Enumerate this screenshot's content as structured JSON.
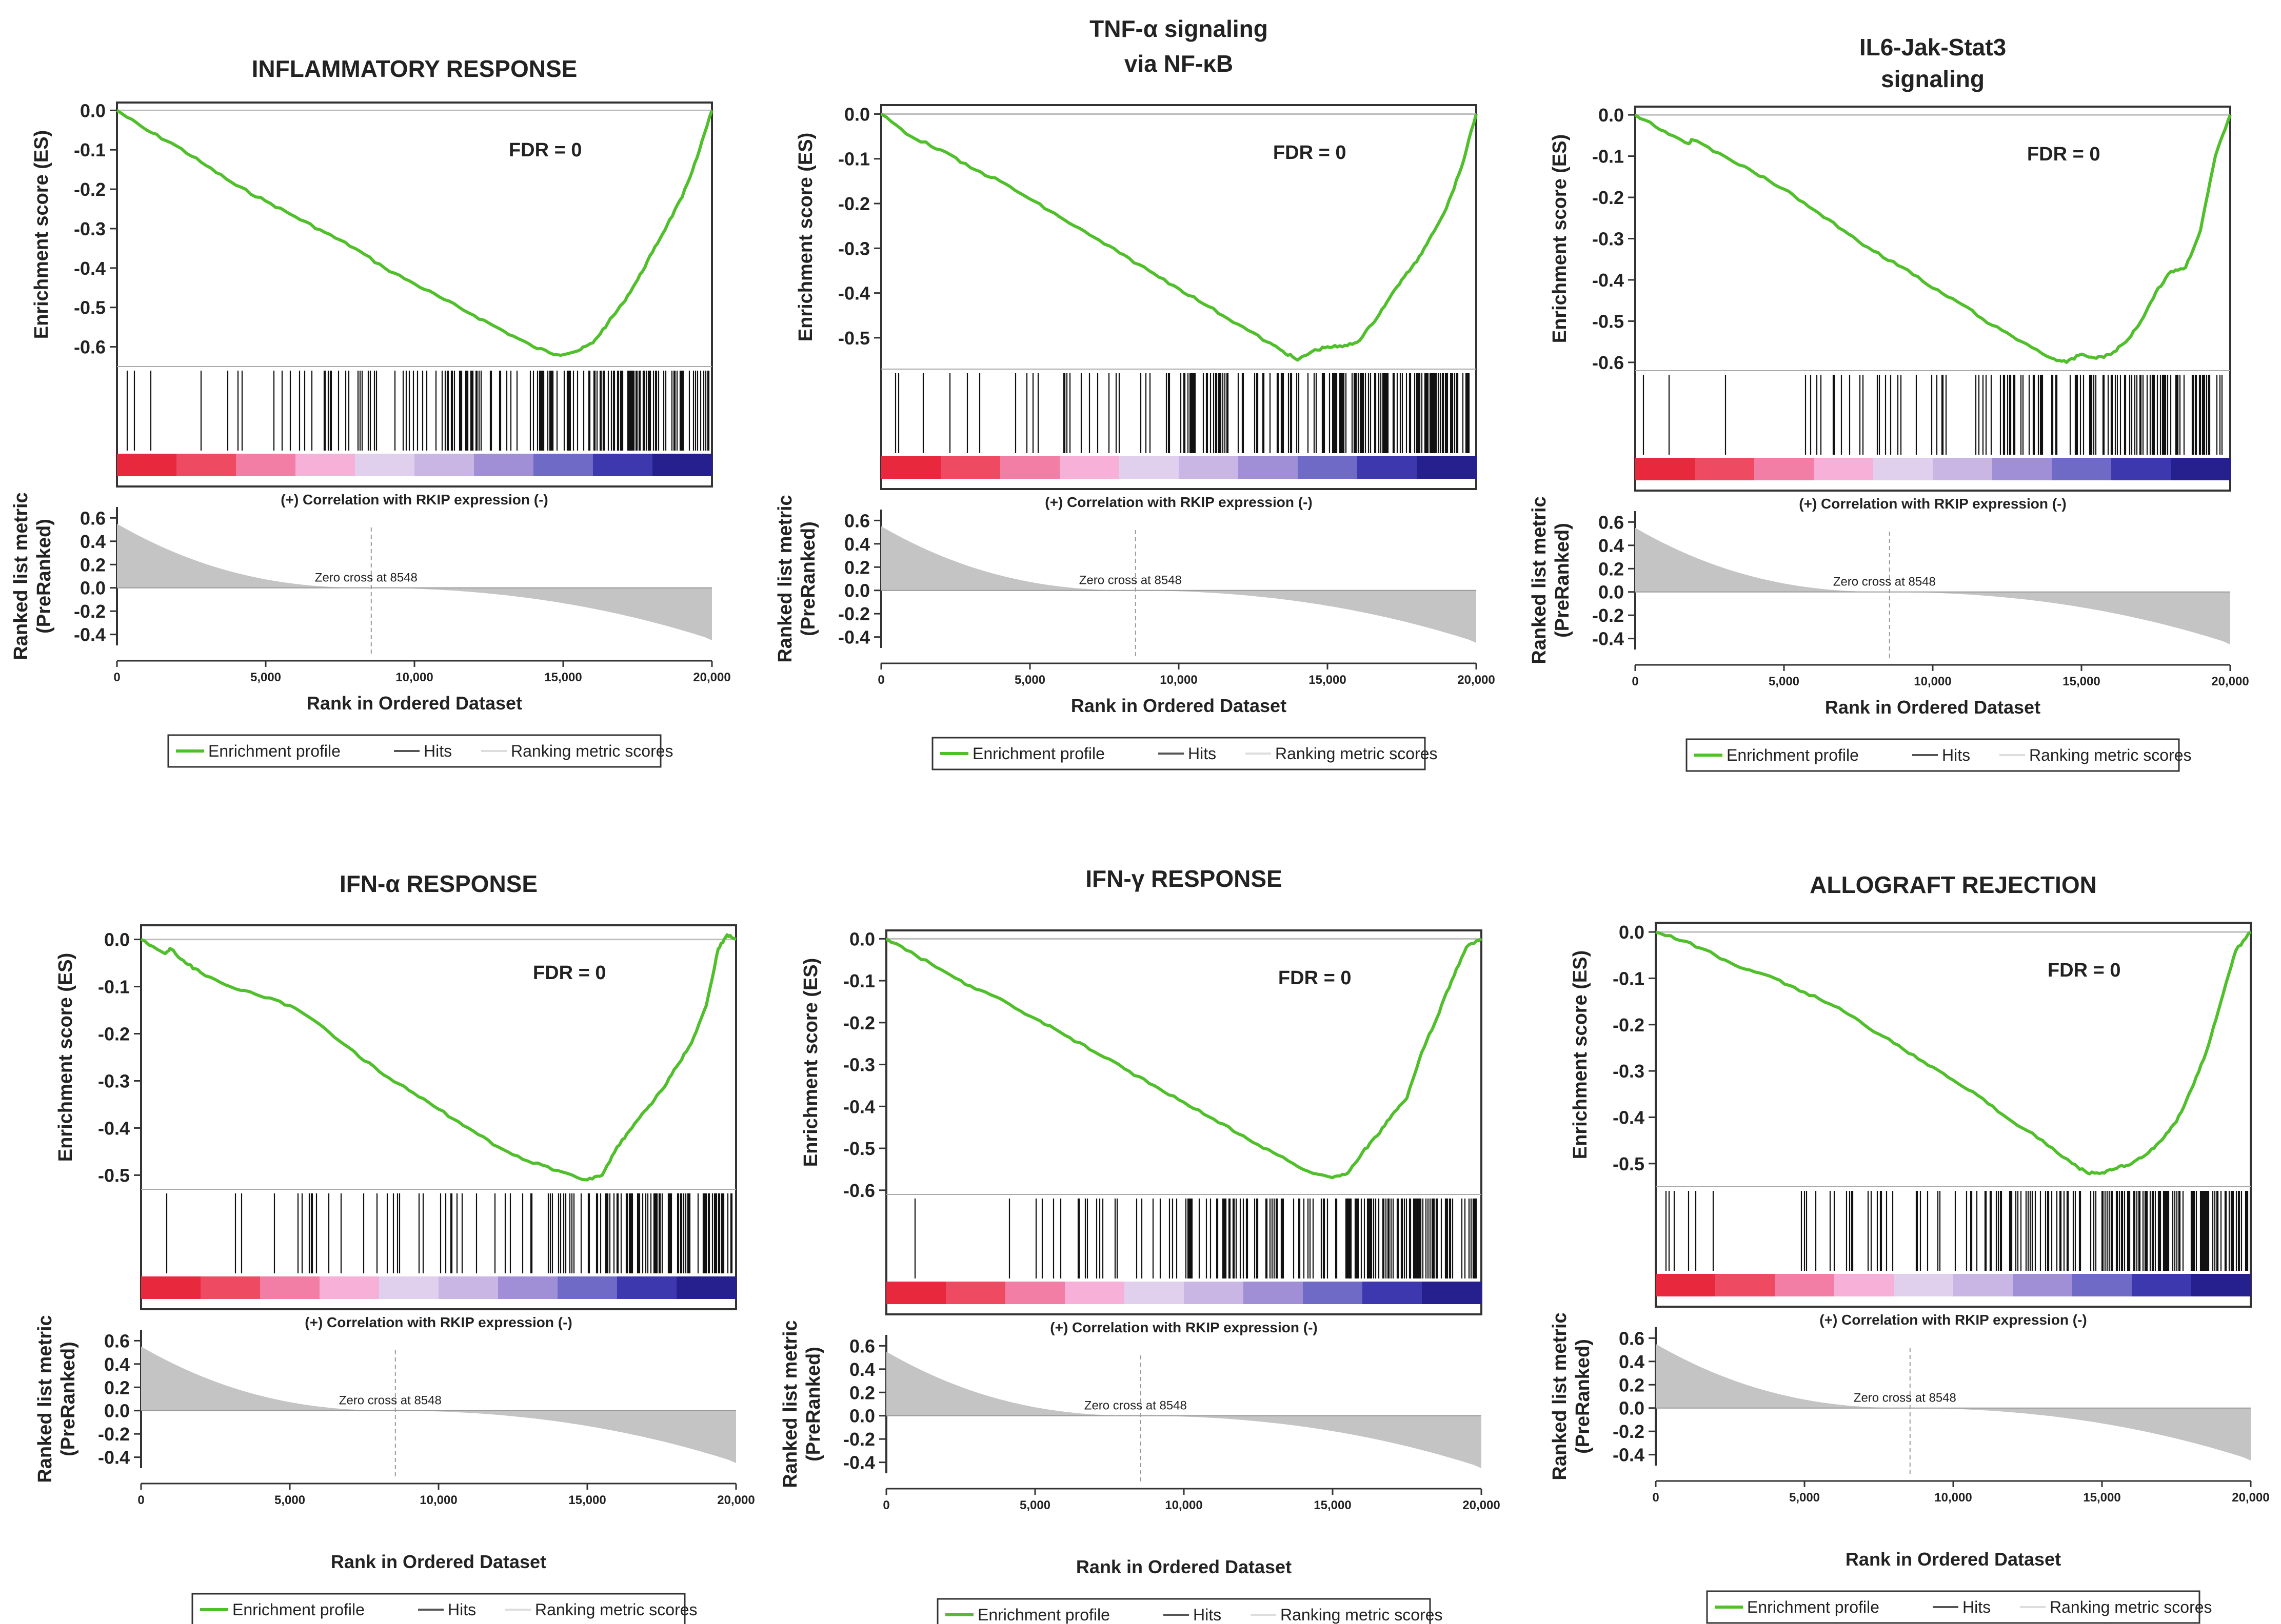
{
  "colors": {
    "enrichment": "#4fbf2a",
    "hits": "#111111",
    "metric_fill": "#c4c4c4",
    "zero_line": "#bdbdbd",
    "frame": "#333333",
    "strip": [
      "#e8283c",
      "#ee4a62",
      "#f27ea6",
      "#f7b0d8",
      "#e0d0ee",
      "#c9b6e4",
      "#a08fd6",
      "#6f6ac6",
      "#3e38ae",
      "#26208f"
    ]
  },
  "common": {
    "es_axis_label": "Enrichment score (ES)",
    "metric_axis_label_1": "Ranked list metric",
    "metric_axis_label_2": "(PreRanked)",
    "x_axis_label": "Rank in Ordered Dataset",
    "correlation_label": "(+) Correlation with RKIP expression (-)",
    "zero_cross_label": "Zero cross at 8548",
    "fdr_label": "FDR = 0",
    "legend": {
      "enrichment": "Enrichment profile",
      "hits": "Hits",
      "metric": "Ranking metric scores"
    },
    "x_ticks": [
      "0",
      "5,000",
      "10,000",
      "15,000",
      "20,000"
    ],
    "metric_ticks": [
      "0.6",
      "0.4",
      "0.2",
      "0.0",
      "-0.2",
      "-0.4"
    ]
  },
  "chart_data": [
    {
      "type": "line",
      "title_lines": [
        "INFLAMMATORY RESPONSE"
      ],
      "x": [
        0,
        1000,
        2000,
        3000,
        4000,
        5000,
        6000,
        7000,
        8000,
        9000,
        10000,
        11000,
        12000,
        13000,
        14000,
        14800,
        15500,
        16000,
        16500,
        17000,
        17500,
        18000,
        18500,
        19000,
        19500,
        20000
      ],
      "es": [
        0.0,
        -0.05,
        -0.09,
        -0.14,
        -0.19,
        -0.23,
        -0.27,
        -0.31,
        -0.35,
        -0.4,
        -0.44,
        -0.48,
        -0.52,
        -0.56,
        -0.6,
        -0.62,
        -0.61,
        -0.59,
        -0.54,
        -0.49,
        -0.43,
        -0.36,
        -0.29,
        -0.22,
        -0.12,
        0.0
      ],
      "es_ticks": [
        "0.0",
        "-0.1",
        "-0.2",
        "-0.3",
        "-0.4",
        "-0.5",
        "-0.6"
      ],
      "es_ylim": [
        -0.65,
        0.02
      ],
      "xlim": [
        0,
        20000
      ],
      "metric_ylim": [
        -0.45,
        0.65
      ],
      "hits_density": [
        0.06,
        0.24,
        0.5,
        0.88
      ],
      "zero_cross": 8548,
      "legend_position": "bottom"
    },
    {
      "type": "line",
      "title_lines": [
        "TNF-α signaling",
        "via NF-κB"
      ],
      "x": [
        0,
        1000,
        2000,
        3000,
        4000,
        5000,
        6000,
        7000,
        8000,
        9000,
        10000,
        11000,
        12000,
        13000,
        13500,
        14000,
        14500,
        15000,
        15500,
        16000,
        16500,
        17000,
        17500,
        18000,
        18500,
        19000,
        19500,
        20000
      ],
      "es": [
        0.0,
        -0.05,
        -0.08,
        -0.12,
        -0.15,
        -0.19,
        -0.23,
        -0.27,
        -0.31,
        -0.35,
        -0.39,
        -0.43,
        -0.47,
        -0.51,
        -0.53,
        -0.55,
        -0.53,
        -0.52,
        -0.52,
        -0.51,
        -0.47,
        -0.42,
        -0.37,
        -0.33,
        -0.27,
        -0.21,
        -0.12,
        0.0
      ],
      "es_ticks": [
        "0.0",
        "-0.1",
        "-0.2",
        "-0.3",
        "-0.4",
        "-0.5"
      ],
      "es_ylim": [
        -0.57,
        0.02
      ],
      "xlim": [
        0,
        20000
      ],
      "metric_ylim": [
        -0.45,
        0.65
      ],
      "hits_density": [
        0.05,
        0.2,
        0.5,
        0.92
      ],
      "zero_cross": 8548,
      "legend_position": "bottom"
    },
    {
      "type": "line",
      "title_lines": [
        "IL6-Jak-Stat3",
        "signaling"
      ],
      "x": [
        0,
        1000,
        1800,
        1900,
        3000,
        4000,
        5000,
        6000,
        7000,
        8000,
        9000,
        10000,
        11000,
        12000,
        13000,
        14000,
        14500,
        15000,
        15500,
        16000,
        16500,
        17000,
        17500,
        18000,
        18500,
        19000,
        19500,
        20000
      ],
      "es": [
        0.0,
        -0.04,
        -0.07,
        -0.06,
        -0.1,
        -0.14,
        -0.18,
        -0.23,
        -0.28,
        -0.33,
        -0.37,
        -0.42,
        -0.46,
        -0.51,
        -0.55,
        -0.59,
        -0.6,
        -0.58,
        -0.59,
        -0.58,
        -0.55,
        -0.5,
        -0.43,
        -0.38,
        -0.37,
        -0.28,
        -0.1,
        0.0
      ],
      "es_ticks": [
        "0.0",
        "-0.1",
        "-0.2",
        "-0.3",
        "-0.4",
        "-0.5",
        "-0.6"
      ],
      "es_ylim": [
        -0.62,
        0.02
      ],
      "xlim": [
        0,
        20000
      ],
      "metric_ylim": [
        -0.45,
        0.65
      ],
      "hits_density": [
        0.03,
        0.12,
        0.4,
        0.8
      ],
      "zero_cross": 8548,
      "legend_position": "bottom"
    },
    {
      "type": "line",
      "title_lines": [
        "IFN-α RESPONSE"
      ],
      "x": [
        0,
        800,
        1000,
        1500,
        2000,
        3000,
        4000,
        5000,
        6000,
        7000,
        8000,
        9000,
        10000,
        11000,
        12000,
        13000,
        14000,
        15000,
        15500,
        16000,
        16500,
        17000,
        17500,
        18000,
        18500,
        19000,
        19400,
        19700,
        20000
      ],
      "es": [
        0.0,
        -0.03,
        -0.02,
        -0.05,
        -0.07,
        -0.1,
        -0.12,
        -0.14,
        -0.18,
        -0.23,
        -0.28,
        -0.32,
        -0.36,
        -0.4,
        -0.44,
        -0.47,
        -0.49,
        -0.51,
        -0.5,
        -0.44,
        -0.4,
        -0.36,
        -0.32,
        -0.27,
        -0.22,
        -0.14,
        -0.02,
        0.01,
        0.0
      ],
      "es_ticks": [
        "0.0",
        "-0.1",
        "-0.2",
        "-0.3",
        "-0.4",
        "-0.5"
      ],
      "es_ylim": [
        -0.53,
        0.03
      ],
      "xlim": [
        0,
        20000
      ],
      "metric_ylim": [
        -0.45,
        0.65
      ],
      "hits_density": [
        0.04,
        0.18,
        0.35,
        0.8
      ],
      "zero_cross": 8548,
      "legend_position": "bottom"
    },
    {
      "type": "line",
      "title_lines": [
        "IFN-γ RESPONSE"
      ],
      "x": [
        0,
        1000,
        2000,
        3000,
        4000,
        5000,
        6000,
        7000,
        8000,
        9000,
        10000,
        11000,
        12000,
        13000,
        14000,
        15000,
        15500,
        16000,
        16500,
        17000,
        17500,
        18000,
        18500,
        19000,
        19500,
        20000
      ],
      "es": [
        0.0,
        -0.04,
        -0.08,
        -0.12,
        -0.15,
        -0.19,
        -0.23,
        -0.27,
        -0.31,
        -0.35,
        -0.39,
        -0.43,
        -0.47,
        -0.51,
        -0.55,
        -0.57,
        -0.56,
        -0.51,
        -0.47,
        -0.42,
        -0.38,
        -0.27,
        -0.19,
        -0.1,
        -0.02,
        0.0
      ],
      "es_ticks": [
        "0.0",
        "-0.1",
        "-0.2",
        "-0.3",
        "-0.4",
        "-0.5",
        "-0.6"
      ],
      "es_ylim": [
        -0.61,
        0.02
      ],
      "xlim": [
        0,
        20000
      ],
      "metric_ylim": [
        -0.45,
        0.65
      ],
      "hits_density": [
        0.05,
        0.3,
        0.55,
        0.9
      ],
      "zero_cross": 8548,
      "legend_position": "bottom"
    },
    {
      "type": "line",
      "title_lines": [
        "ALLOGRAFT REJECTION"
      ],
      "x": [
        0,
        1000,
        2000,
        3000,
        4000,
        5000,
        6000,
        7000,
        8000,
        9000,
        10000,
        11000,
        12000,
        13000,
        14000,
        14500,
        15000,
        15500,
        16000,
        16500,
        17000,
        17500,
        18000,
        18500,
        19000,
        19500,
        20000
      ],
      "es": [
        0.0,
        -0.02,
        -0.05,
        -0.08,
        -0.1,
        -0.13,
        -0.16,
        -0.2,
        -0.24,
        -0.28,
        -0.32,
        -0.36,
        -0.41,
        -0.45,
        -0.5,
        -0.52,
        -0.52,
        -0.51,
        -0.5,
        -0.48,
        -0.45,
        -0.41,
        -0.34,
        -0.26,
        -0.15,
        -0.04,
        0.0
      ],
      "es_ticks": [
        "0.0",
        "-0.1",
        "-0.2",
        "-0.3",
        "-0.4",
        "-0.5"
      ],
      "es_ylim": [
        -0.55,
        0.02
      ],
      "xlim": [
        0,
        20000
      ],
      "metric_ylim": [
        -0.45,
        0.65
      ],
      "hits_density": [
        0.05,
        0.22,
        0.5,
        0.9
      ],
      "zero_cross": 8548,
      "legend_position": "bottom"
    }
  ]
}
